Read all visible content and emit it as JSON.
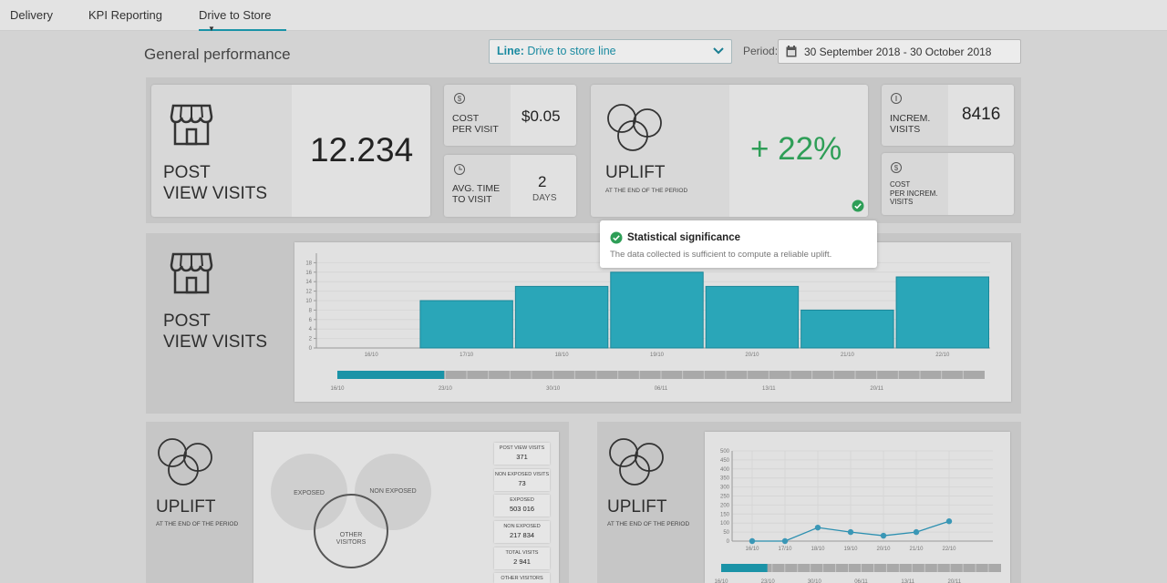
{
  "nav": {
    "tabs": [
      {
        "label": "Delivery"
      },
      {
        "label": "KPI Reporting"
      },
      {
        "label": "Drive to Store"
      }
    ]
  },
  "header": {
    "title": "General performance",
    "line_select": {
      "prefix": "Line:",
      "value": "Drive to store line"
    },
    "period_label": "Period:",
    "period_value": "30 September 2018 - 30 October 2018"
  },
  "kpis": {
    "post_view_visits": {
      "label_line1": "POST",
      "label_line2": "VIEW VISITS",
      "value": "12.234"
    },
    "cost_per_visit": {
      "label_line1": "COST",
      "label_line2": "PER VISIT",
      "value": "$0.05"
    },
    "avg_time_to_visit": {
      "label_line1": "AVG. TIME",
      "label_line2": "TO VISIT",
      "value": "2",
      "unit": "DAYS"
    },
    "uplift": {
      "label": "UPLIFT",
      "sublabel": "AT THE END OF THE PERIOD",
      "value": "+ 22%"
    },
    "increm_visits": {
      "label_line1": "INCREM.",
      "label_line2": "VISITS",
      "value": "8416"
    },
    "cost_per_increm_visit": {
      "label_line1": "COST",
      "label_line2": "PER INCREM.",
      "label_line3": "VISITS"
    }
  },
  "tooltip": {
    "title": "Statistical significance",
    "text": "The data collected is sufficient to compute a reliable uplift."
  },
  "visits_section": {
    "label_line1": "POST",
    "label_line2": "VIEW VISITS"
  },
  "uplift_left": {
    "label": "UPLIFT",
    "sublabel": "AT THE END OF THE PERIOD",
    "venn": {
      "exposed": "EXPOSED",
      "non_exposed": "NON EXPOSED",
      "other_line1": "OTHER",
      "other_line2": "VISITORS"
    },
    "stats": [
      {
        "label": "POST VIEW VISITS",
        "value": "371"
      },
      {
        "label": "NON EXPOSED VISITS",
        "value": "73"
      },
      {
        "label": "EXPOSED",
        "value": "503 016"
      },
      {
        "label": "NON EXPOSED",
        "value": "217 834"
      },
      {
        "label": "TOTAL VISITS",
        "value": "2 941"
      },
      {
        "label": "OTHER VISITORS",
        "value": ""
      }
    ]
  },
  "uplift_right": {
    "label": "UPLIFT",
    "sublabel": "AT THE END OF THE PERIOD"
  },
  "timeline_top": {
    "labels": [
      "16/10",
      "23/10",
      "30/10",
      "06/11",
      "13/11",
      "20/11"
    ]
  },
  "timeline_bottom": {
    "labels": [
      "16/10",
      "23/10",
      "30/10",
      "06/11",
      "13/11",
      "20/11"
    ]
  },
  "colors": {
    "accent": "#1a93a7",
    "bar": "#2aa6b8",
    "positive": "#2e9e57"
  },
  "chart_data": [
    {
      "type": "bar",
      "categories": [
        "16/10",
        "17/10",
        "18/10",
        "19/10",
        "20/10",
        "21/10",
        "22/10"
      ],
      "values": [
        0,
        10,
        13,
        16,
        13,
        8,
        15
      ],
      "ylim": [
        0,
        20
      ],
      "yticks": [
        0,
        2,
        4,
        6,
        8,
        10,
        12,
        14,
        16,
        18
      ],
      "grid": true
    },
    {
      "type": "line",
      "x": [
        "16/10",
        "17/10",
        "18/10",
        "19/10",
        "20/10",
        "21/10",
        "22/10"
      ],
      "values": [
        0,
        0,
        75,
        50,
        30,
        50,
        110
      ],
      "ylim": [
        0,
        500
      ],
      "yticks": [
        0,
        50,
        100,
        150,
        200,
        250,
        300,
        350,
        400,
        450,
        500
      ],
      "grid": true
    }
  ]
}
